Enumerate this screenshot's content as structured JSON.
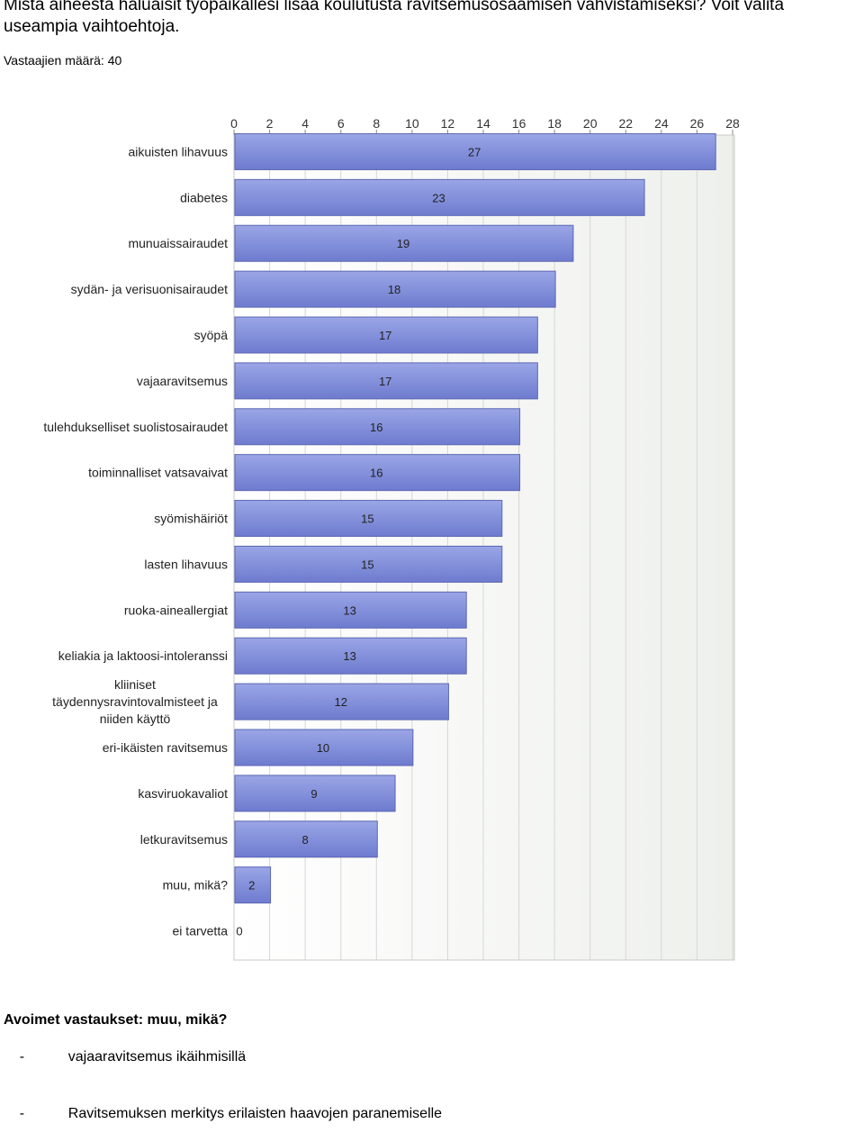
{
  "question": "Mistä aiheesta haluaisit työpaikallesi lisää koulutusta ravitsemusosaamisen vahvistamiseksi? Voit valita useampia vaihtoehtoja.",
  "respondents": "Vastaajien määrä: 40",
  "colors": {
    "bar_fill_top": "#9aa6e6",
    "bar_fill_bottom": "#6e7bcf",
    "bar_edge": "#5c67b3",
    "plot_bg": "#eef0ec",
    "grid": "#d6d8d2"
  },
  "chart_data": {
    "type": "bar",
    "orientation": "horizontal",
    "title": "",
    "xlabel": "",
    "ylabel": "",
    "xlim": [
      0,
      28
    ],
    "xticks": [
      0,
      2,
      4,
      6,
      8,
      10,
      12,
      14,
      16,
      18,
      20,
      22,
      24,
      26,
      28
    ],
    "grid": true,
    "categories": [
      "aikuisten lihavuus",
      "diabetes",
      "munuaissairaudet",
      "sydän- ja verisuonisairaudet",
      "syöpä",
      "vajaaravitsemus",
      "tulehdukselliset suolistosairaudet",
      "toiminnalliset vatsavaivat",
      "syömishäiriöt",
      "lasten lihavuus",
      "ruoka-aineallergiat",
      "keliakia ja laktoosi-intoleranssi",
      "kliiniset täydennysravintovalmisteet ja niiden käyttö",
      "eri-ikäisten ravitsemus",
      "kasviruokavaliot",
      "letkuravitsemus",
      "muu, mikä?",
      "ei tarvetta"
    ],
    "values": [
      27,
      23,
      19,
      18,
      17,
      17,
      16,
      16,
      15,
      15,
      13,
      13,
      12,
      10,
      9,
      8,
      2,
      0
    ]
  },
  "open_answers": {
    "title": "Avoimet vastaukset: muu, mikä?",
    "items": [
      {
        "bullet": "-",
        "text": "vajaaravitsemus ikäihmisillä"
      },
      {
        "bullet": "-",
        "text": "Ravitsemuksen merkitys erilaisten haavojen paranemiselle"
      }
    ]
  }
}
